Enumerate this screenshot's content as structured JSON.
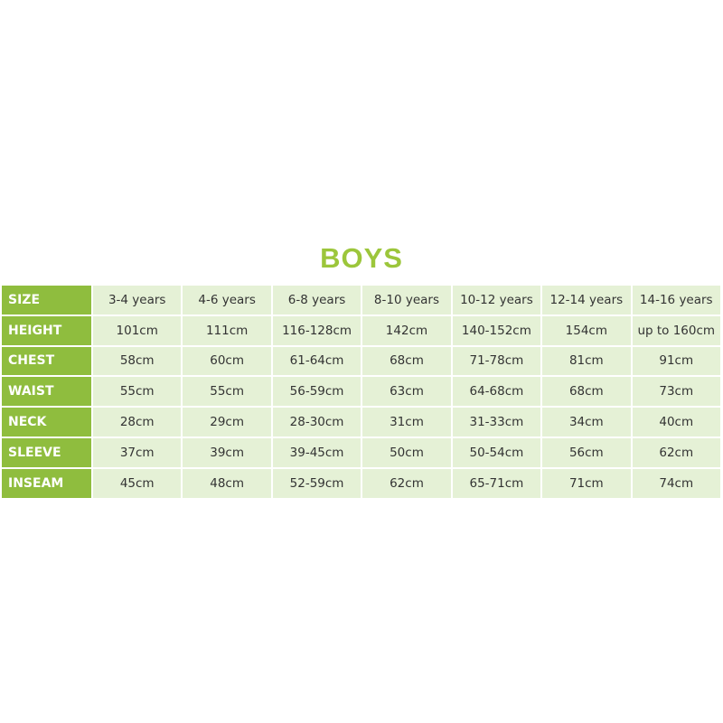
{
  "title": "BOYS",
  "colors": {
    "accent": "#8fbd3e",
    "title": "#9cc63b",
    "cell": "#e5f1d6"
  },
  "rows": [
    {
      "label": "SIZE",
      "values": [
        "3-4 years",
        "4-6 years",
        "6-8 years",
        "8-10 years",
        "10-12 years",
        "12-14 years",
        "14-16 years"
      ]
    },
    {
      "label": "HEIGHT",
      "values": [
        "101cm",
        "111cm",
        "116-128cm",
        "142cm",
        "140-152cm",
        "154cm",
        "up to 160cm"
      ]
    },
    {
      "label": "CHEST",
      "values": [
        "58cm",
        "60cm",
        "61-64cm",
        "68cm",
        "71-78cm",
        "81cm",
        "91cm"
      ]
    },
    {
      "label": "WAIST",
      "values": [
        "55cm",
        "55cm",
        "56-59cm",
        "63cm",
        "64-68cm",
        "68cm",
        "73cm"
      ]
    },
    {
      "label": "NECK",
      "values": [
        "28cm",
        "29cm",
        "28-30cm",
        "31cm",
        "31-33cm",
        "34cm",
        "40cm"
      ]
    },
    {
      "label": "SLEEVE",
      "values": [
        "37cm",
        "39cm",
        "39-45cm",
        "50cm",
        "50-54cm",
        "56cm",
        "62cm"
      ]
    },
    {
      "label": "INSEAM",
      "values": [
        "45cm",
        "48cm",
        "52-59cm",
        "62cm",
        "65-71cm",
        "71cm",
        "74cm"
      ]
    }
  ]
}
